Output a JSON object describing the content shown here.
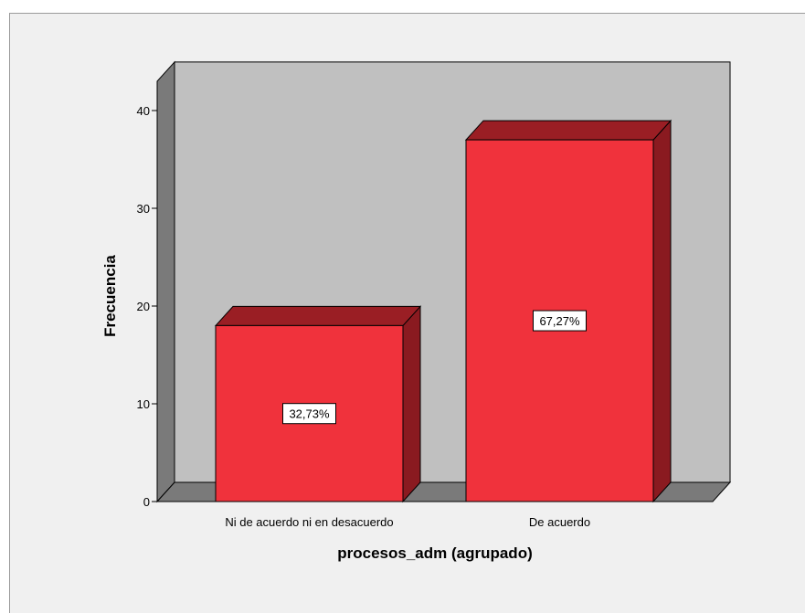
{
  "chart_data": {
    "type": "bar",
    "categories": [
      "Ni de acuerdo ni en desacuerdo",
      "De acuerdo"
    ],
    "values": [
      18,
      37
    ],
    "data_labels": [
      "32,73%",
      "67,27%"
    ],
    "xlabel": "procesos_adm (agrupado)",
    "ylabel": "Frecuencia",
    "ylim": [
      0,
      43
    ],
    "yticks": [
      0,
      10,
      20,
      30,
      40
    ],
    "grid": false,
    "style": "3d",
    "colors": {
      "bar_front": "#f0323c",
      "bar_top": "#9a1e24",
      "bar_side": "#8a1a20",
      "plot_back": "#c0c0c0",
      "plot_floor": "#7a7a7a",
      "plot_wall": "#7a7a7a",
      "frame": "#f0f0f0"
    }
  }
}
